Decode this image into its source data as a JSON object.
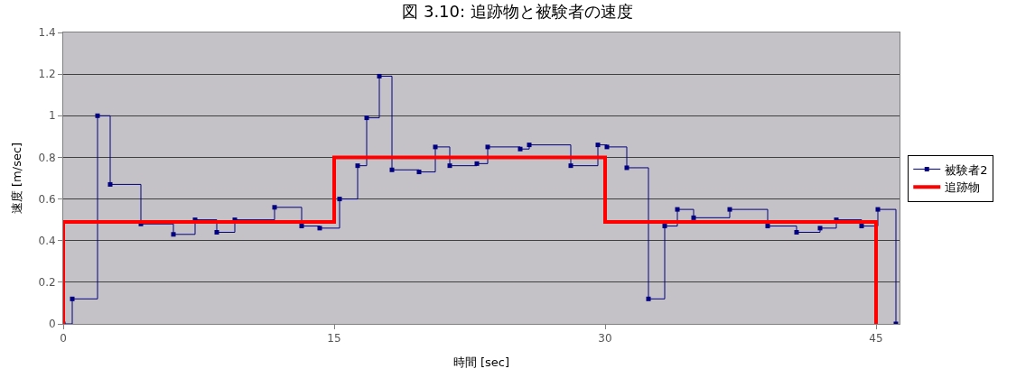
{
  "chart_data": {
    "type": "step",
    "title": "図 3.10: 追跡物と被験者の速度",
    "xlabel": "時間 [sec]",
    "ylabel": "速度 [m/sec]",
    "series": [
      {
        "name": "被験者2",
        "color": "#000080",
        "marker": "square",
        "x": [
          0,
          0.5,
          1.9,
          2.6,
          4.3,
          6.1,
          7.3,
          8.5,
          9.5,
          11.7,
          13.2,
          14.2,
          15.3,
          16.3,
          16.8,
          17.5,
          18.2,
          19.7,
          20.6,
          21.4,
          22.9,
          23.5,
          25.3,
          25.8,
          28.1,
          29.6,
          30.1,
          31.2,
          32.4,
          33.3,
          34.0,
          34.9,
          36.9,
          39.0,
          40.6,
          41.9,
          42.8,
          44.2,
          45.1,
          46.1
        ],
        "values": [
          0,
          0.12,
          1.0,
          0.67,
          0.48,
          0.43,
          0.5,
          0.44,
          0.5,
          0.56,
          0.47,
          0.46,
          0.6,
          0.76,
          0.99,
          1.19,
          0.74,
          0.73,
          0.85,
          0.76,
          0.77,
          0.85,
          0.84,
          0.86,
          0.76,
          0.86,
          0.85,
          0.75,
          0.12,
          0.47,
          0.55,
          0.51,
          0.55,
          0.47,
          0.44,
          0.46,
          0.5,
          0.47,
          0.55,
          0
        ]
      },
      {
        "name": "追跡物",
        "color": "#ff0000",
        "marker": "none",
        "x": [
          0,
          0,
          15,
          30,
          45,
          45
        ],
        "values": [
          0,
          0.49,
          0.8,
          0.49,
          0.49,
          0
        ]
      }
    ],
    "xlim": [
      0,
      46.3
    ],
    "xticks": [
      0,
      15,
      30,
      45
    ],
    "ylim": [
      0,
      1.4
    ],
    "yticks": [
      0,
      0.2,
      0.4,
      0.6,
      0.8,
      1,
      1.2,
      1.4
    ],
    "grid": "y",
    "legend": "right"
  }
}
